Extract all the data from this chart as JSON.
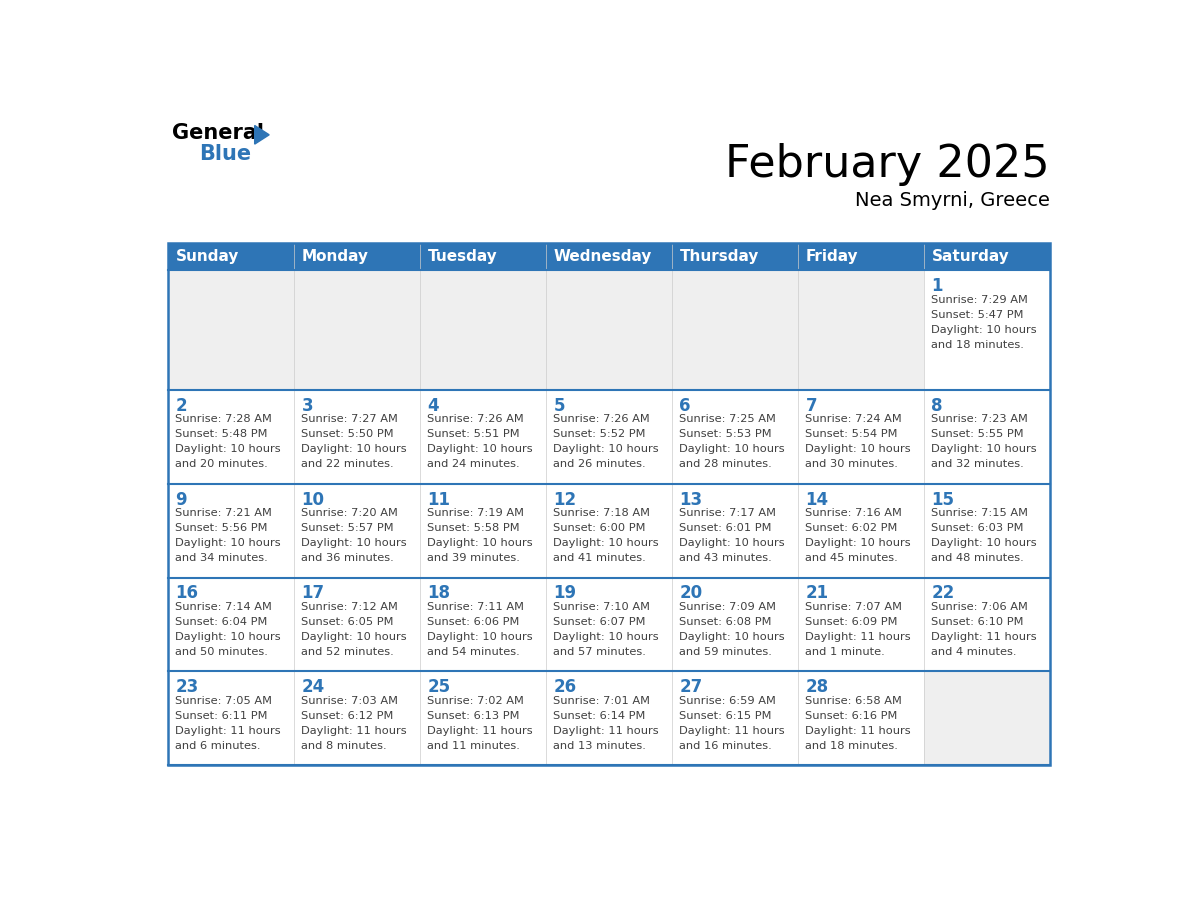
{
  "title": "February 2025",
  "subtitle": "Nea Smyrni, Greece",
  "header_bg_color": "#2E75B6",
  "header_text_color": "#FFFFFF",
  "cell_bg_color": "#FFFFFF",
  "alt_cell_bg_color": "#EFEFEF",
  "row_border_color": "#2E75B6",
  "col_border_color": "#CCCCCC",
  "title_color": "#000000",
  "subtitle_color": "#000000",
  "day_number_color": "#2E75B6",
  "cell_text_color": "#404040",
  "days_of_week": [
    "Sunday",
    "Monday",
    "Tuesday",
    "Wednesday",
    "Thursday",
    "Friday",
    "Saturday"
  ],
  "calendar_data": [
    [
      {
        "day": null
      },
      {
        "day": null
      },
      {
        "day": null
      },
      {
        "day": null
      },
      {
        "day": null
      },
      {
        "day": null
      },
      {
        "day": 1,
        "sunrise": "7:29 AM",
        "sunset": "5:47 PM",
        "daylight_line1": "10 hours",
        "daylight_line2": "and 18 minutes."
      }
    ],
    [
      {
        "day": 2,
        "sunrise": "7:28 AM",
        "sunset": "5:48 PM",
        "daylight_line1": "10 hours",
        "daylight_line2": "and 20 minutes."
      },
      {
        "day": 3,
        "sunrise": "7:27 AM",
        "sunset": "5:50 PM",
        "daylight_line1": "10 hours",
        "daylight_line2": "and 22 minutes."
      },
      {
        "day": 4,
        "sunrise": "7:26 AM",
        "sunset": "5:51 PM",
        "daylight_line1": "10 hours",
        "daylight_line2": "and 24 minutes."
      },
      {
        "day": 5,
        "sunrise": "7:26 AM",
        "sunset": "5:52 PM",
        "daylight_line1": "10 hours",
        "daylight_line2": "and 26 minutes."
      },
      {
        "day": 6,
        "sunrise": "7:25 AM",
        "sunset": "5:53 PM",
        "daylight_line1": "10 hours",
        "daylight_line2": "and 28 minutes."
      },
      {
        "day": 7,
        "sunrise": "7:24 AM",
        "sunset": "5:54 PM",
        "daylight_line1": "10 hours",
        "daylight_line2": "and 30 minutes."
      },
      {
        "day": 8,
        "sunrise": "7:23 AM",
        "sunset": "5:55 PM",
        "daylight_line1": "10 hours",
        "daylight_line2": "and 32 minutes."
      }
    ],
    [
      {
        "day": 9,
        "sunrise": "7:21 AM",
        "sunset": "5:56 PM",
        "daylight_line1": "10 hours",
        "daylight_line2": "and 34 minutes."
      },
      {
        "day": 10,
        "sunrise": "7:20 AM",
        "sunset": "5:57 PM",
        "daylight_line1": "10 hours",
        "daylight_line2": "and 36 minutes."
      },
      {
        "day": 11,
        "sunrise": "7:19 AM",
        "sunset": "5:58 PM",
        "daylight_line1": "10 hours",
        "daylight_line2": "and 39 minutes."
      },
      {
        "day": 12,
        "sunrise": "7:18 AM",
        "sunset": "6:00 PM",
        "daylight_line1": "10 hours",
        "daylight_line2": "and 41 minutes."
      },
      {
        "day": 13,
        "sunrise": "7:17 AM",
        "sunset": "6:01 PM",
        "daylight_line1": "10 hours",
        "daylight_line2": "and 43 minutes."
      },
      {
        "day": 14,
        "sunrise": "7:16 AM",
        "sunset": "6:02 PM",
        "daylight_line1": "10 hours",
        "daylight_line2": "and 45 minutes."
      },
      {
        "day": 15,
        "sunrise": "7:15 AM",
        "sunset": "6:03 PM",
        "daylight_line1": "10 hours",
        "daylight_line2": "and 48 minutes."
      }
    ],
    [
      {
        "day": 16,
        "sunrise": "7:14 AM",
        "sunset": "6:04 PM",
        "daylight_line1": "10 hours",
        "daylight_line2": "and 50 minutes."
      },
      {
        "day": 17,
        "sunrise": "7:12 AM",
        "sunset": "6:05 PM",
        "daylight_line1": "10 hours",
        "daylight_line2": "and 52 minutes."
      },
      {
        "day": 18,
        "sunrise": "7:11 AM",
        "sunset": "6:06 PM",
        "daylight_line1": "10 hours",
        "daylight_line2": "and 54 minutes."
      },
      {
        "day": 19,
        "sunrise": "7:10 AM",
        "sunset": "6:07 PM",
        "daylight_line1": "10 hours",
        "daylight_line2": "and 57 minutes."
      },
      {
        "day": 20,
        "sunrise": "7:09 AM",
        "sunset": "6:08 PM",
        "daylight_line1": "10 hours",
        "daylight_line2": "and 59 minutes."
      },
      {
        "day": 21,
        "sunrise": "7:07 AM",
        "sunset": "6:09 PM",
        "daylight_line1": "11 hours",
        "daylight_line2": "and 1 minute."
      },
      {
        "day": 22,
        "sunrise": "7:06 AM",
        "sunset": "6:10 PM",
        "daylight_line1": "11 hours",
        "daylight_line2": "and 4 minutes."
      }
    ],
    [
      {
        "day": 23,
        "sunrise": "7:05 AM",
        "sunset": "6:11 PM",
        "daylight_line1": "11 hours",
        "daylight_line2": "and 6 minutes."
      },
      {
        "day": 24,
        "sunrise": "7:03 AM",
        "sunset": "6:12 PM",
        "daylight_line1": "11 hours",
        "daylight_line2": "and 8 minutes."
      },
      {
        "day": 25,
        "sunrise": "7:02 AM",
        "sunset": "6:13 PM",
        "daylight_line1": "11 hours",
        "daylight_line2": "and 11 minutes."
      },
      {
        "day": 26,
        "sunrise": "7:01 AM",
        "sunset": "6:14 PM",
        "daylight_line1": "11 hours",
        "daylight_line2": "and 13 minutes."
      },
      {
        "day": 27,
        "sunrise": "6:59 AM",
        "sunset": "6:15 PM",
        "daylight_line1": "11 hours",
        "daylight_line2": "and 16 minutes."
      },
      {
        "day": 28,
        "sunrise": "6:58 AM",
        "sunset": "6:16 PM",
        "daylight_line1": "11 hours",
        "daylight_line2": "and 18 minutes."
      },
      {
        "day": null
      }
    ]
  ],
  "logo_color_general": "#000000",
  "logo_color_blue": "#2E75B6",
  "logo_triangle_color": "#2E75B6",
  "fig_width": 11.88,
  "fig_height": 9.18,
  "dpi": 100
}
